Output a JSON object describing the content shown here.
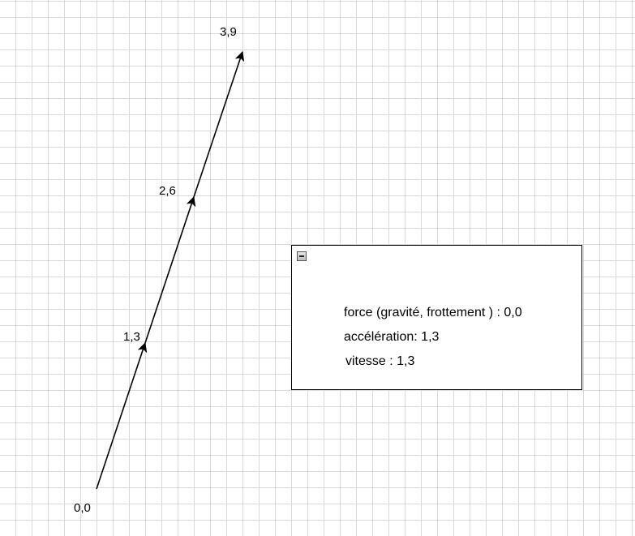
{
  "diagram": {
    "points": [
      {
        "id": "p0",
        "label": "0,0"
      },
      {
        "id": "p1",
        "label": "1,3"
      },
      {
        "id": "p2",
        "label": "2,6"
      },
      {
        "id": "p3",
        "label": "3,9"
      }
    ]
  },
  "info_box": {
    "collapse_icon": "minus-square-icon",
    "force": "force (gravité, frottement ) : 0,0",
    "acceleration": "accélération: 1,3",
    "vitesse": "vitesse : 1,3"
  },
  "colors": {
    "grid": "#d9d9d9",
    "line": "#000000"
  }
}
